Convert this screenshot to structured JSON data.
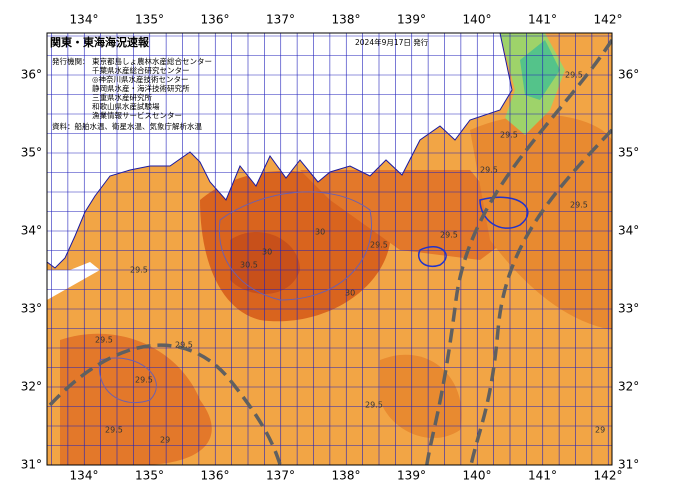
{
  "header": {
    "title": "関東・東海海況速報",
    "date": "2024年9月17日 発行"
  },
  "agencies": {
    "label": "発行機関：",
    "items": [
      "東京都島しょ農林水産総合センター",
      "千葉県水産総合研究センター",
      "◎神奈川県水産技術センター",
      "静岡県水産・海洋技術研究所",
      "三重県水産研究所",
      "和歌山県水産試験場",
      "漁業情報サービスセンター"
    ]
  },
  "source": "資料：船舶水温、衛星水温、気象庁解析水温",
  "map": {
    "lon_labels": [
      "134°",
      "135°",
      "136°",
      "137°",
      "138°",
      "139°",
      "140°",
      "141°",
      "142°"
    ],
    "lat_labels": [
      "36°",
      "35°",
      "34°",
      "33°",
      "32°",
      "31°"
    ],
    "contour_labels": [
      "30",
      "30",
      "30",
      "30.5",
      "29.5",
      "29.5",
      "29.5",
      "29.5",
      "29.5",
      "29.5",
      "29.5",
      "29.5",
      "29.5",
      "29.5",
      "29",
      "29",
      "29.5",
      "29.5"
    ]
  }
}
